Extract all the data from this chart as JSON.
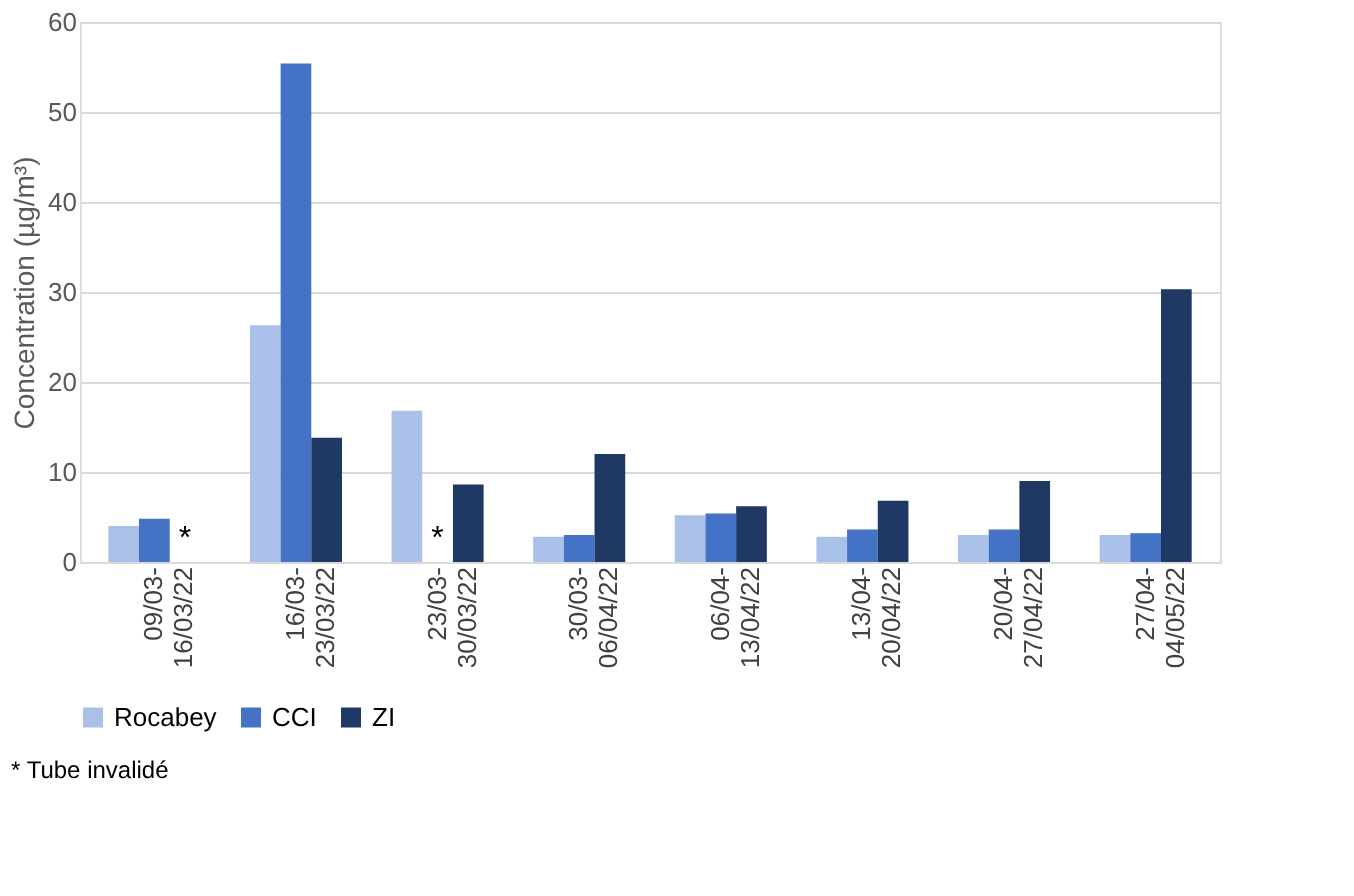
{
  "chart_data": {
    "type": "bar",
    "ylabel": "Concentration (µg/m³)",
    "categories": [
      "09/03- 16/03/22",
      "16/03- 23/03/22",
      "23/03- 30/03/22",
      "30/03- 06/04/22",
      "06/04- 13/04/22",
      "13/04- 20/04/22",
      "20/04- 27/04/22",
      "27/04- 04/05/22"
    ],
    "series": [
      {
        "name": "Rocabey",
        "color": "#a9c1e8",
        "values": [
          4.0,
          26.3,
          16.8,
          2.8,
          5.2,
          2.8,
          3.0,
          3.0
        ]
      },
      {
        "name": "CCI",
        "color": "#4472c4",
        "values": [
          4.8,
          55.4,
          null,
          3.0,
          5.4,
          3.6,
          3.6,
          3.2
        ]
      },
      {
        "name": "ZI",
        "color": "#1f3864",
        "values": [
          null,
          13.8,
          8.6,
          12.0,
          6.2,
          6.8,
          9.0,
          30.3
        ]
      }
    ],
    "ylim": [
      0,
      60
    ],
    "yticks": [
      0,
      10,
      20,
      30,
      40,
      50,
      60
    ],
    "grid": "y",
    "legend": "bottom",
    "annotations": [
      {
        "text": "*",
        "x": "09/03- 16/03/22",
        "y": 0
      },
      {
        "text": "*",
        "x": "23/03- 30/03/22",
        "y": 0
      },
      "* Tube invalidé"
    ]
  }
}
